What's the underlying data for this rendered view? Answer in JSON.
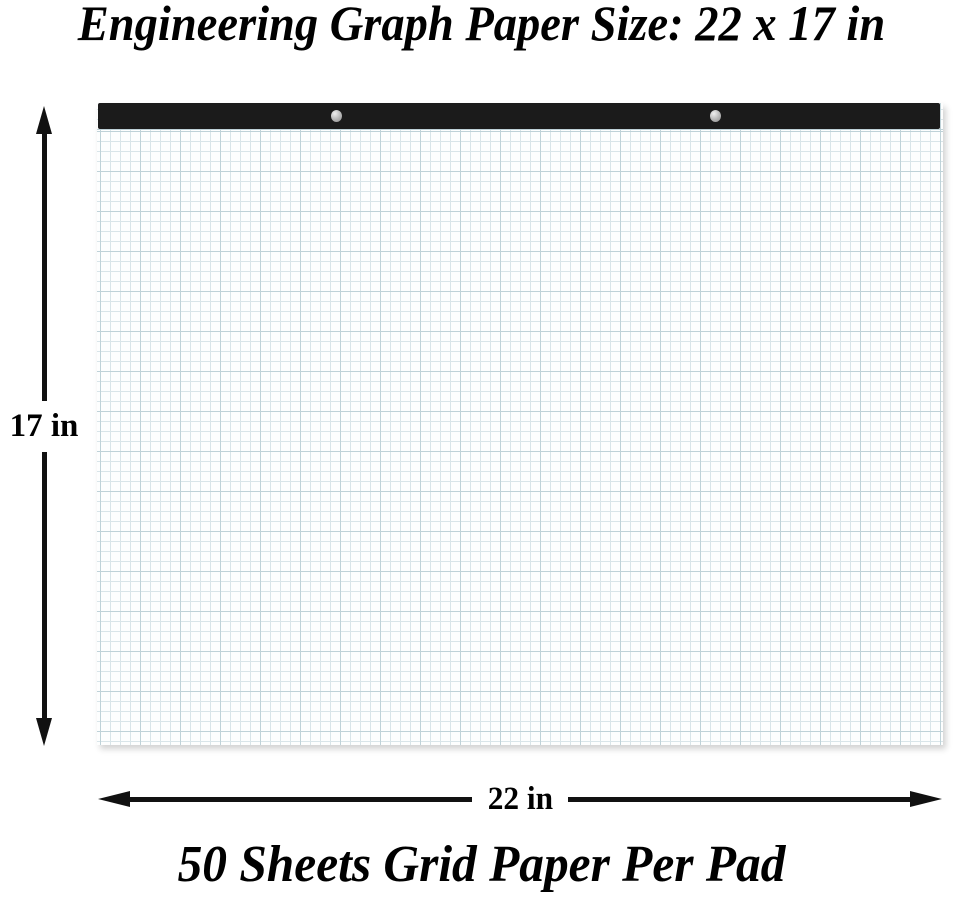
{
  "title": "Engineering Graph Paper Size: 22 x 17 in",
  "pad": {
    "binding": {
      "color": "#1b1b1b",
      "screw_icons": [
        "screw-rivet-icon",
        "screw-rivet-icon"
      ]
    },
    "paper": {
      "background": "#fdfefe",
      "grid_fine_color": "#d9e5e9",
      "grid_major_color": "#bfd2d8"
    }
  },
  "dimensions": {
    "arrow_color": "#111111",
    "height": {
      "label": "17 in"
    },
    "width": {
      "label": "22 in"
    }
  },
  "caption": "50 Sheets Grid Paper Per Pad"
}
